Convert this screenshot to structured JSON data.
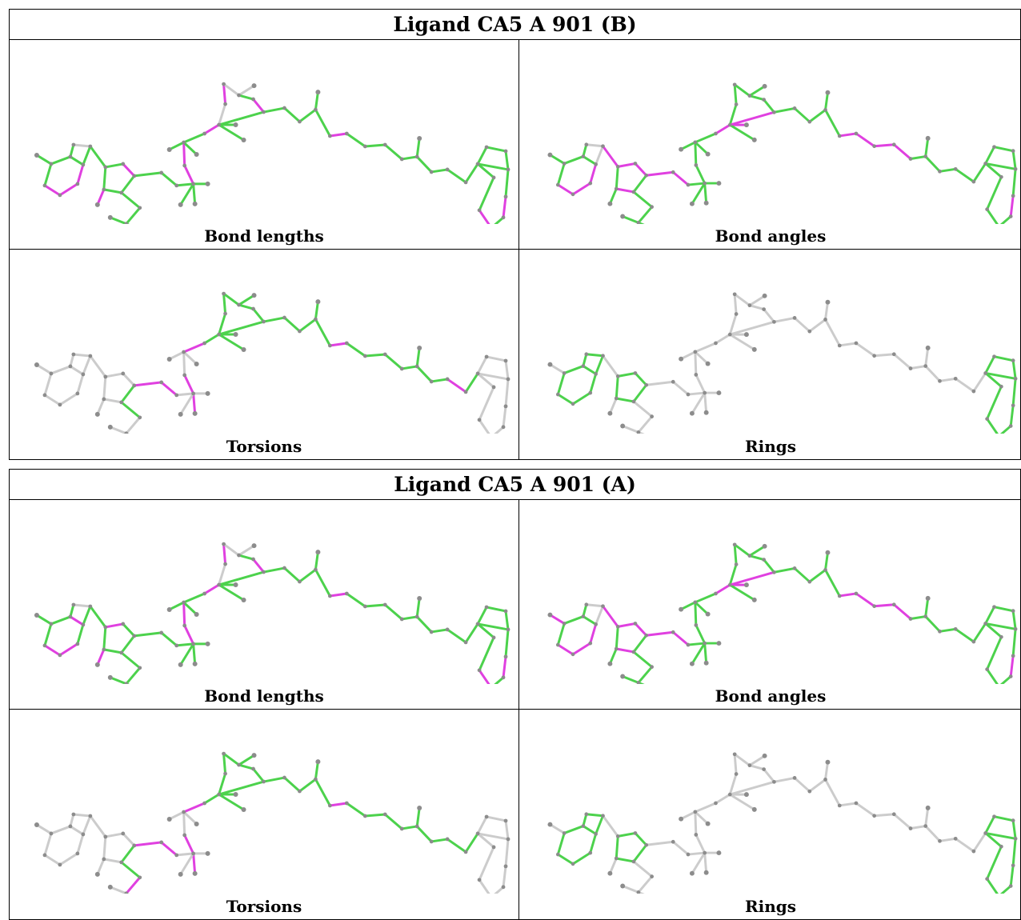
{
  "colors": {
    "outlier": "#e040e0",
    "ok": "#4cd24c",
    "not_checked": "#cccccc",
    "atom": "#8c8c8c"
  },
  "panels": [
    {
      "title": "Ligand CA5 A 901 (B)",
      "cells": [
        {
          "label": "Bond lengths",
          "scheme": "bond_lengths_B"
        },
        {
          "label": "Bond angles",
          "scheme": "bond_angles_B"
        },
        {
          "label": "Torsions",
          "scheme": "torsions_B"
        },
        {
          "label": "Rings",
          "scheme": "rings"
        }
      ]
    },
    {
      "title": "Ligand CA5 A 901 (A)",
      "cells": [
        {
          "label": "Bond lengths",
          "scheme": "bond_lengths_A"
        },
        {
          "label": "Bond angles",
          "scheme": "bond_angles_A"
        },
        {
          "label": "Torsions",
          "scheme": "torsions_A"
        },
        {
          "label": "Rings",
          "scheme": "rings"
        }
      ]
    }
  ]
}
